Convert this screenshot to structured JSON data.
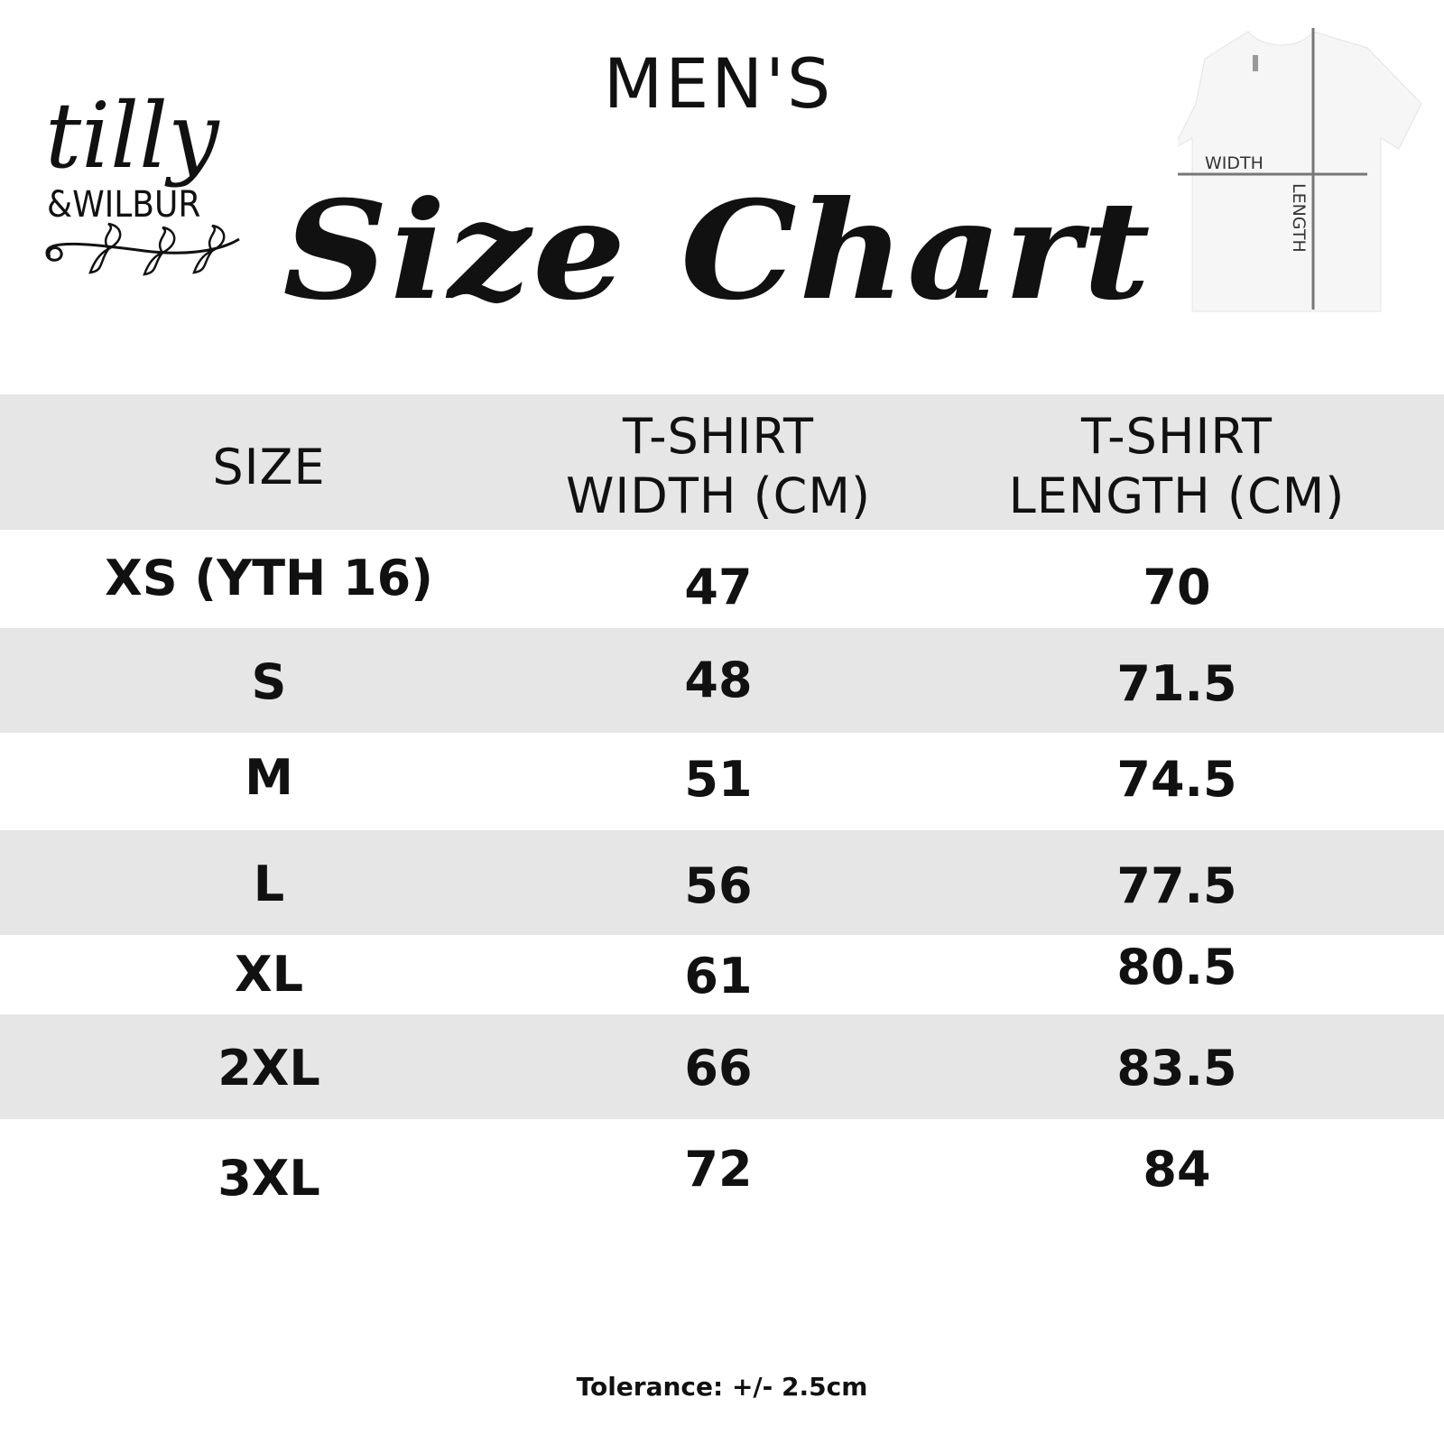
{
  "brand": {
    "logo_text": "tilly &WILBUR"
  },
  "header": {
    "subtitle": "MEN'S",
    "title": "Size Chart"
  },
  "diagram": {
    "width_label": "WIDTH",
    "length_label": "LENGTH"
  },
  "table": {
    "columns": [
      "SIZE",
      "T-SHIRT WIDTH (CM)",
      "T-SHIRT LENGTH (CM)"
    ],
    "column_lines": [
      [
        "SIZE"
      ],
      [
        "T-SHIRT",
        "WIDTH (CM)"
      ],
      [
        "T-SHIRT",
        "LENGTH (CM)"
      ]
    ],
    "rows": [
      [
        "XS (YTH 16)",
        "47",
        "70"
      ],
      [
        "S",
        "48",
        "71.5"
      ],
      [
        "M",
        "51",
        "74.5"
      ],
      [
        "L",
        "56",
        "77.5"
      ],
      [
        "XL",
        "61",
        "80.5"
      ],
      [
        "2XL",
        "66",
        "83.5"
      ],
      [
        "3XL",
        "72",
        "84"
      ]
    ]
  },
  "footer": {
    "tolerance": "Tolerance: +/- 2.5cm"
  },
  "colors": {
    "band_gray": "#e6e6e6",
    "text": "#111111",
    "measure_line": "#777777"
  }
}
